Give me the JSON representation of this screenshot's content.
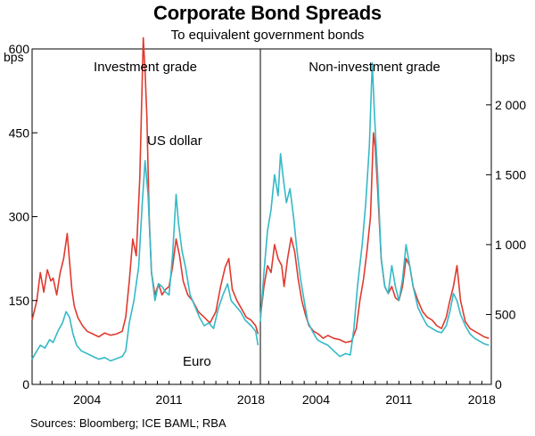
{
  "header": {
    "title": "Corporate Bond Spreads",
    "subtitle": "To equivalent government bonds"
  },
  "footer": {
    "source": "Sources: Bloomberg; ICE BAML; RBA"
  },
  "colors": {
    "us_dollar": "#e03a2f",
    "euro": "#35b9c6",
    "axis": "#000000"
  },
  "chart_data": [
    {
      "type": "line",
      "title": "Investment grade",
      "ylabel": "bps",
      "y_axis_side": "left",
      "ylim": [
        0,
        600
      ],
      "yticks": [
        0,
        150,
        300,
        450,
        600
      ],
      "xlim": [
        1999.3,
        2018.8
      ],
      "xticks": [
        2004,
        2011,
        2018
      ],
      "annotations": [
        "US dollar",
        "Euro"
      ],
      "series": [
        {
          "name": "US dollar",
          "x": [
            1999.3,
            1999.7,
            2000.0,
            2000.3,
            2000.6,
            2000.9,
            2001.1,
            2001.4,
            2001.7,
            2002.0,
            2002.3,
            2002.5,
            2002.7,
            2002.9,
            2003.2,
            2003.6,
            2004.0,
            2004.5,
            2005.0,
            2005.5,
            2006.0,
            2006.5,
            2007.0,
            2007.3,
            2007.6,
            2007.9,
            2008.2,
            2008.5,
            2008.8,
            2008.95,
            2009.1,
            2009.3,
            2009.5,
            2009.8,
            2010.1,
            2010.4,
            2010.7,
            2011.0,
            2011.3,
            2011.6,
            2011.9,
            2012.2,
            2012.6,
            2013.0,
            2013.5,
            2014.0,
            2014.5,
            2015.0,
            2015.4,
            2015.8,
            2016.1,
            2016.4,
            2016.8,
            2017.2,
            2017.6,
            2018.0,
            2018.4,
            2018.6
          ],
          "values": [
            115,
            150,
            200,
            165,
            205,
            185,
            190,
            160,
            200,
            225,
            270,
            220,
            170,
            140,
            120,
            105,
            95,
            90,
            85,
            92,
            88,
            90,
            95,
            120,
            185,
            260,
            230,
            370,
            620,
            560,
            480,
            300,
            200,
            160,
            180,
            160,
            170,
            175,
            210,
            260,
            230,
            185,
            160,
            150,
            130,
            120,
            110,
            130,
            175,
            210,
            225,
            170,
            150,
            135,
            120,
            115,
            105,
            90
          ]
        },
        {
          "name": "Euro",
          "x": [
            1999.3,
            1999.7,
            2000.0,
            2000.4,
            2000.8,
            2001.1,
            2001.5,
            2001.9,
            2002.2,
            2002.5,
            2002.8,
            2003.1,
            2003.5,
            2004.0,
            2004.5,
            2005.0,
            2005.5,
            2006.0,
            2006.5,
            2007.0,
            2007.3,
            2007.6,
            2008.0,
            2008.4,
            2008.7,
            2008.95,
            2009.2,
            2009.5,
            2009.8,
            2010.1,
            2010.4,
            2010.7,
            2011.0,
            2011.3,
            2011.6,
            2011.8,
            2012.1,
            2012.4,
            2012.8,
            2013.2,
            2013.6,
            2014.0,
            2014.4,
            2014.8,
            2015.2,
            2015.6,
            2016.0,
            2016.3,
            2016.7,
            2017.1,
            2017.5,
            2018.0,
            2018.4,
            2018.6
          ],
          "values": [
            45,
            60,
            70,
            65,
            80,
            75,
            95,
            110,
            130,
            120,
            90,
            70,
            60,
            55,
            50,
            45,
            48,
            42,
            46,
            50,
            60,
            110,
            150,
            210,
            320,
            400,
            340,
            200,
            150,
            180,
            175,
            165,
            160,
            230,
            340,
            290,
            240,
            210,
            160,
            140,
            120,
            105,
            110,
            100,
            135,
            160,
            180,
            150,
            140,
            130,
            115,
            105,
            95,
            70
          ]
        }
      ]
    },
    {
      "type": "line",
      "title": "Non-investment grade",
      "ylabel": "bps",
      "y_axis_side": "right",
      "ylim": [
        0,
        2400
      ],
      "yticks": [
        0,
        500,
        1000,
        1500,
        2000
      ],
      "ytick_labels": [
        "0",
        "500",
        "1 000",
        "1 500",
        "2 000"
      ],
      "xlim": [
        1999.3,
        2018.8
      ],
      "xticks": [
        2004,
        2011,
        2018
      ],
      "series": [
        {
          "name": "US dollar",
          "x": [
            1999.3,
            1999.6,
            1999.9,
            2000.2,
            2000.5,
            2000.8,
            2001.1,
            2001.3,
            2001.6,
            2001.9,
            2002.2,
            2002.5,
            2002.8,
            2003.1,
            2003.4,
            2003.8,
            2004.2,
            2004.6,
            2005.0,
            2005.5,
            2006.0,
            2006.5,
            2007.0,
            2007.4,
            2007.7,
            2008.0,
            2008.3,
            2008.6,
            2008.85,
            2009.0,
            2009.2,
            2009.5,
            2009.8,
            2010.1,
            2010.4,
            2010.7,
            2011.0,
            2011.3,
            2011.6,
            2011.9,
            2012.2,
            2012.6,
            2013.0,
            2013.4,
            2013.8,
            2014.2,
            2014.6,
            2015.0,
            2015.3,
            2015.6,
            2015.9,
            2016.2,
            2016.6,
            2017.0,
            2017.4,
            2017.8,
            2018.2,
            2018.6
          ],
          "values": [
            480,
            700,
            850,
            800,
            1000,
            900,
            850,
            700,
            900,
            1050,
            950,
            750,
            600,
            500,
            420,
            380,
            360,
            330,
            350,
            330,
            320,
            300,
            310,
            400,
            600,
            750,
            950,
            1200,
            1800,
            1700,
            1400,
            900,
            700,
            650,
            700,
            620,
            600,
            700,
            900,
            850,
            700,
            600,
            520,
            480,
            460,
            420,
            400,
            480,
            600,
            700,
            850,
            600,
            450,
            400,
            380,
            360,
            340,
            330
          ]
        },
        {
          "name": "Euro",
          "x": [
            1999.3,
            1999.6,
            1999.9,
            2000.2,
            2000.5,
            2000.8,
            2001.0,
            2001.2,
            2001.5,
            2001.8,
            2002.1,
            2002.4,
            2002.7,
            2003.0,
            2003.3,
            2003.7,
            2004.1,
            2004.5,
            2005.0,
            2005.5,
            2006.0,
            2006.5,
            2006.9,
            2007.2,
            2007.5,
            2007.9,
            2008.2,
            2008.5,
            2008.75,
            2008.95,
            2009.2,
            2009.5,
            2009.8,
            2010.1,
            2010.4,
            2010.7,
            2011.0,
            2011.3,
            2011.6,
            2011.9,
            2012.2,
            2012.6,
            2013.0,
            2013.4,
            2013.8,
            2014.2,
            2014.6,
            2015.0,
            2015.3,
            2015.6,
            2015.9,
            2016.2,
            2016.6,
            2017.0,
            2017.4,
            2017.8,
            2018.2,
            2018.6
          ],
          "values": [
            450,
            800,
            1100,
            1250,
            1500,
            1350,
            1650,
            1500,
            1300,
            1400,
            1200,
            950,
            750,
            600,
            450,
            380,
            320,
            300,
            280,
            240,
            200,
            220,
            210,
            400,
            700,
            1000,
            1300,
            1700,
            2300,
            1900,
            1500,
            900,
            700,
            650,
            850,
            700,
            600,
            750,
            1000,
            850,
            700,
            550,
            480,
            420,
            400,
            380,
            370,
            420,
            520,
            650,
            600,
            500,
            420,
            360,
            330,
            310,
            290,
            280
          ]
        }
      ]
    }
  ]
}
